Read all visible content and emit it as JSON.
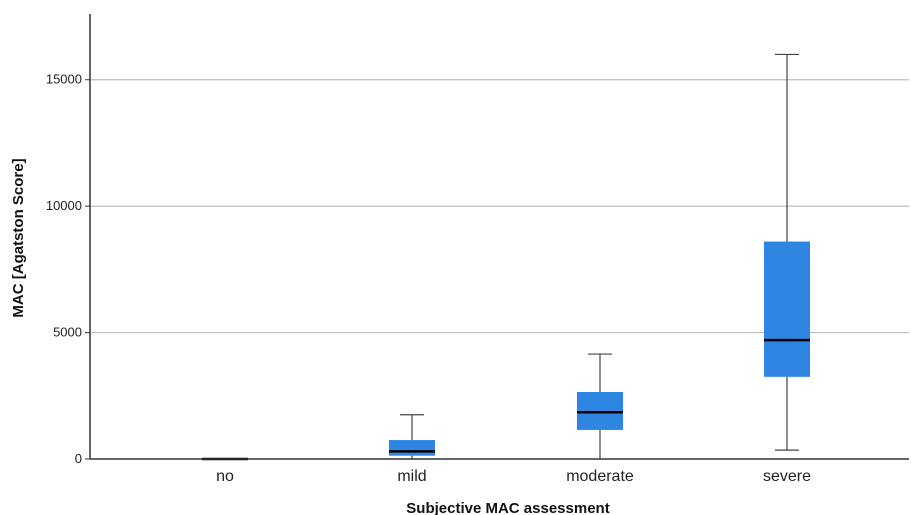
{
  "chart_data": {
    "type": "boxplot",
    "xlabel": "Subjective MAC assessment",
    "ylabel": "MAC [Agatston Score]",
    "ylim": [
      0,
      17600
    ],
    "yticks": [
      0,
      5000,
      10000,
      15000
    ],
    "ytick_labels": [
      "0",
      "5000",
      "10000",
      "15000"
    ],
    "grid": true,
    "box_color": "#2f86e2",
    "median_color": "#000000",
    "categories": [
      "no",
      "mild",
      "moderate",
      "severe"
    ],
    "boxes": [
      {
        "category": "no",
        "whisker_low": 0,
        "q1": 0,
        "median": 0,
        "q3": 0,
        "whisker_high": 0
      },
      {
        "category": "mild",
        "whisker_low": 0,
        "q1": 130,
        "median": 300,
        "q3": 750,
        "whisker_high": 1750
      },
      {
        "category": "moderate",
        "whisker_low": 0,
        "q1": 1150,
        "median": 1850,
        "q3": 2650,
        "whisker_high": 4150
      },
      {
        "category": "severe",
        "whisker_low": 350,
        "q1": 3250,
        "median": 4700,
        "q3": 8600,
        "whisker_high": 16000
      }
    ]
  }
}
